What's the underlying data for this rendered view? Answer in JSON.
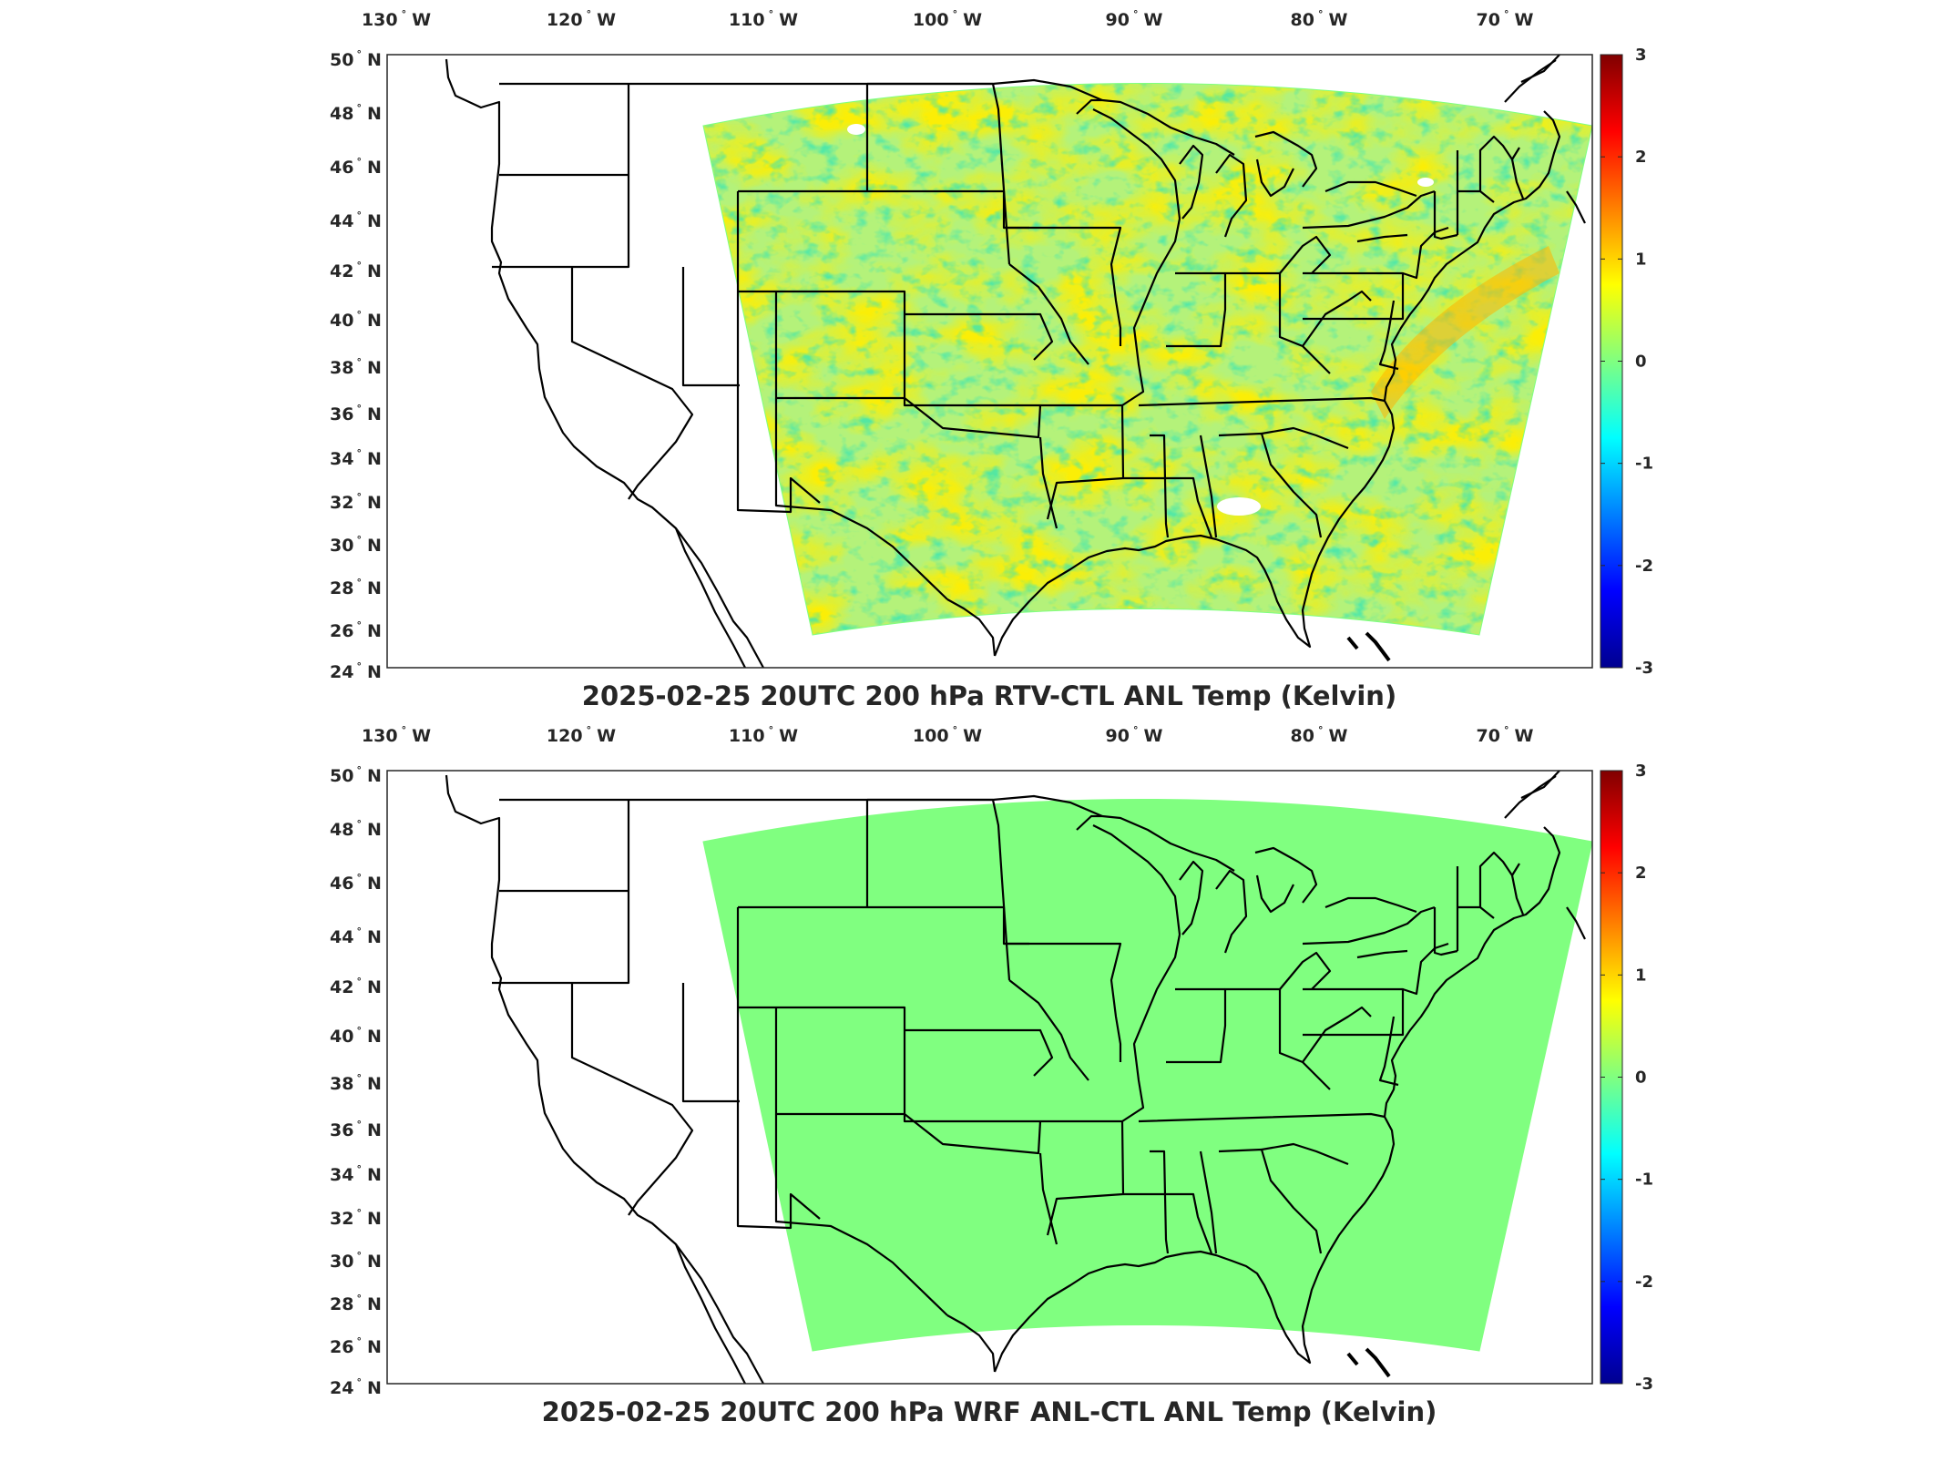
{
  "panels": [
    {
      "title": "2025-02-25 20UTC 200 hPa RTV-CTL ANL Temp (Kelvin)",
      "field": "mixed",
      "lon_labels": [
        "130",
        "120",
        "110",
        "100",
        "90",
        "80",
        "70"
      ],
      "lon_suffix": "W",
      "lat_labels": [
        "50",
        "48",
        "46",
        "44",
        "42",
        "40",
        "38",
        "36",
        "34",
        "32",
        "30",
        "28",
        "26",
        "24"
      ],
      "lat_suffix": "N",
      "colorbar_ticks": [
        "3",
        "2",
        "1",
        "0",
        "-1",
        "-2",
        "-3"
      ]
    },
    {
      "title": "2025-02-25 20UTC 200 hPa WRF ANL-CTL ANL Temp (Kelvin)",
      "field": "uniform",
      "lon_labels": [
        "130",
        "120",
        "110",
        "100",
        "90",
        "80",
        "70"
      ],
      "lon_suffix": "W",
      "lat_labels": [
        "50",
        "48",
        "46",
        "44",
        "42",
        "40",
        "38",
        "36",
        "34",
        "32",
        "30",
        "28",
        "26",
        "24"
      ],
      "lat_suffix": "N",
      "colorbar_ticks": [
        "3",
        "2",
        "1",
        "0",
        "-1",
        "-2",
        "-3"
      ]
    }
  ],
  "colors": {
    "uniform_field": "#80ff80",
    "colormap": [
      "#00008f",
      "#0000ff",
      "#0080ff",
      "#00ffff",
      "#80ff80",
      "#ffff00",
      "#ff8000",
      "#ff0000",
      "#800000"
    ]
  }
}
